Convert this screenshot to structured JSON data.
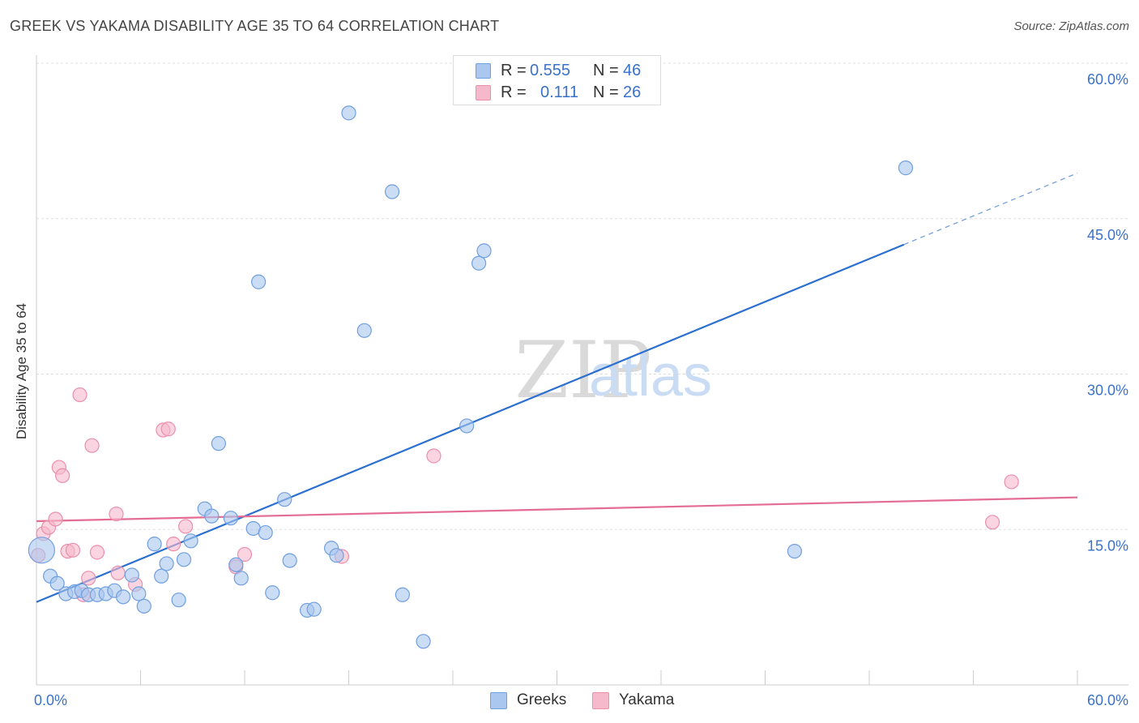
{
  "header": {
    "title": "GREEK VS YAKAMA DISABILITY AGE 35 TO 64 CORRELATION CHART",
    "source": "Source: ZipAtlas.com"
  },
  "watermark": {
    "zip": "ZIP",
    "atlas": "atlas"
  },
  "legend": {
    "rows": [
      {
        "r_label": "R =",
        "r_value": "0.555",
        "n_label": "N =",
        "n_value": "46"
      },
      {
        "r_label": "R =",
        "r_value": "0.111",
        "n_label": "N =",
        "n_value": "26"
      }
    ]
  },
  "bottom_legend": {
    "greeks": "Greeks",
    "yakama": "Yakama"
  },
  "colors": {
    "greeks_fill": "#a9c7ef",
    "greeks_stroke": "#6f9fe0",
    "greeks_line": "#2b6fd0",
    "yakama_fill": "#f6b8cb",
    "yakama_stroke": "#eb8fab",
    "yakama_line": "#e46d94",
    "tick_label": "#3a72c9",
    "grid": "#dddddd"
  },
  "chart_data": {
    "type": "scatter",
    "title": "GREEK VS YAKAMA DISABILITY AGE 35 TO 64 CORRELATION CHART",
    "xlabel": "",
    "ylabel": "Disability Age 35 to 64",
    "xlim": [
      0,
      60
    ],
    "ylim": [
      0,
      60
    ],
    "x_tick_labels": [
      "0.0%",
      "60.0%"
    ],
    "y_ticks": [
      {
        "value": 15,
        "label": "15.0%"
      },
      {
        "value": 30,
        "label": "30.0%"
      },
      {
        "value": 45,
        "label": "45.0%"
      },
      {
        "value": 60,
        "label": "60.0%"
      }
    ],
    "grid": true,
    "legend_position": "top-center",
    "series": [
      {
        "name": "Greeks",
        "r": 0.555,
        "n": 46,
        "trend": {
          "x0": 0,
          "y0": 8.0,
          "x1": 50.0,
          "y1": 42.5,
          "dash_to_x": 60.0,
          "dash_to_y": 49.4
        },
        "points": [
          {
            "x": 0.3,
            "y": 13.0,
            "big": 1
          },
          {
            "x": 0.8,
            "y": 10.5
          },
          {
            "x": 1.2,
            "y": 9.8
          },
          {
            "x": 1.7,
            "y": 8.8
          },
          {
            "x": 2.2,
            "y": 9.0
          },
          {
            "x": 2.6,
            "y": 9.1
          },
          {
            "x": 3.0,
            "y": 8.7
          },
          {
            "x": 3.5,
            "y": 8.7
          },
          {
            "x": 4.0,
            "y": 8.8
          },
          {
            "x": 4.5,
            "y": 9.1
          },
          {
            "x": 5.0,
            "y": 8.5
          },
          {
            "x": 5.5,
            "y": 10.6
          },
          {
            "x": 5.9,
            "y": 8.8
          },
          {
            "x": 6.2,
            "y": 7.6
          },
          {
            "x": 6.8,
            "y": 13.6
          },
          {
            "x": 7.2,
            "y": 10.5
          },
          {
            "x": 7.5,
            "y": 11.7
          },
          {
            "x": 8.2,
            "y": 8.2
          },
          {
            "x": 8.5,
            "y": 12.1
          },
          {
            "x": 8.9,
            "y": 13.9
          },
          {
            "x": 9.7,
            "y": 17.0
          },
          {
            "x": 10.1,
            "y": 16.3
          },
          {
            "x": 10.5,
            "y": 23.3
          },
          {
            "x": 11.2,
            "y": 16.1
          },
          {
            "x": 11.5,
            "y": 11.6
          },
          {
            "x": 11.8,
            "y": 10.3
          },
          {
            "x": 12.5,
            "y": 15.1
          },
          {
            "x": 12.8,
            "y": 38.9
          },
          {
            "x": 13.2,
            "y": 14.7
          },
          {
            "x": 13.6,
            "y": 8.9
          },
          {
            "x": 14.3,
            "y": 17.9
          },
          {
            "x": 14.6,
            "y": 12.0
          },
          {
            "x": 15.6,
            "y": 7.2
          },
          {
            "x": 16.0,
            "y": 7.3
          },
          {
            "x": 17.0,
            "y": 13.2
          },
          {
            "x": 17.3,
            "y": 12.5
          },
          {
            "x": 18.0,
            "y": 55.2
          },
          {
            "x": 18.9,
            "y": 34.2
          },
          {
            "x": 20.5,
            "y": 47.6
          },
          {
            "x": 21.1,
            "y": 8.7
          },
          {
            "x": 22.3,
            "y": 4.2
          },
          {
            "x": 24.8,
            "y": 25.0
          },
          {
            "x": 25.5,
            "y": 40.7
          },
          {
            "x": 25.8,
            "y": 41.9
          },
          {
            "x": 43.7,
            "y": 12.9
          },
          {
            "x": 50.1,
            "y": 49.9
          }
        ]
      },
      {
        "name": "Yakama",
        "r": 0.111,
        "n": 26,
        "trend": {
          "x0": 0,
          "y0": 15.8,
          "x1": 60.0,
          "y1": 18.1
        },
        "points": [
          {
            "x": 0.1,
            "y": 12.5
          },
          {
            "x": 0.4,
            "y": 14.6
          },
          {
            "x": 0.7,
            "y": 15.2
          },
          {
            "x": 1.1,
            "y": 16.0
          },
          {
            "x": 1.3,
            "y": 21.0
          },
          {
            "x": 1.5,
            "y": 20.2
          },
          {
            "x": 1.8,
            "y": 12.9
          },
          {
            "x": 2.1,
            "y": 13.0
          },
          {
            "x": 2.5,
            "y": 28.0
          },
          {
            "x": 2.7,
            "y": 8.7
          },
          {
            "x": 3.0,
            "y": 10.3
          },
          {
            "x": 3.2,
            "y": 23.1
          },
          {
            "x": 3.5,
            "y": 12.8
          },
          {
            "x": 4.6,
            "y": 16.5
          },
          {
            "x": 4.7,
            "y": 10.8
          },
          {
            "x": 5.7,
            "y": 9.7
          },
          {
            "x": 7.3,
            "y": 24.6
          },
          {
            "x": 7.6,
            "y": 24.7
          },
          {
            "x": 7.9,
            "y": 13.6
          },
          {
            "x": 8.6,
            "y": 15.3
          },
          {
            "x": 11.5,
            "y": 11.4
          },
          {
            "x": 12.0,
            "y": 12.6
          },
          {
            "x": 17.6,
            "y": 12.4
          },
          {
            "x": 22.9,
            "y": 22.1
          },
          {
            "x": 55.1,
            "y": 15.7
          },
          {
            "x": 56.2,
            "y": 19.6
          }
        ]
      }
    ]
  }
}
